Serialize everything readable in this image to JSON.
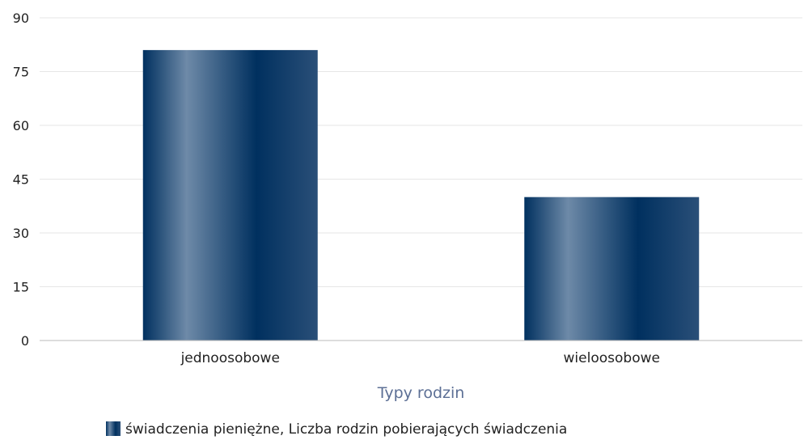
{
  "chart_data": {
    "type": "bar",
    "categories": [
      "jednoosobowe",
      "wieloosobowe"
    ],
    "series": [
      {
        "name": "świadczenia pieniężne, Liczba rodzin pobierających świadczenia",
        "values": [
          81,
          40
        ]
      }
    ],
    "xlabel": "Typy rodzin",
    "ylabel": "",
    "ylim": [
      0,
      90
    ],
    "yticks": [
      0,
      15,
      30,
      45,
      60,
      75,
      90
    ],
    "grid": true,
    "legend": "bottom",
    "colors": {
      "bar_dark": "#00305f",
      "bar_light": "#6e8aa8",
      "grid": "#e6e6e6",
      "axis": "#bbbbbb",
      "xlabel": "#5c6f95"
    }
  }
}
